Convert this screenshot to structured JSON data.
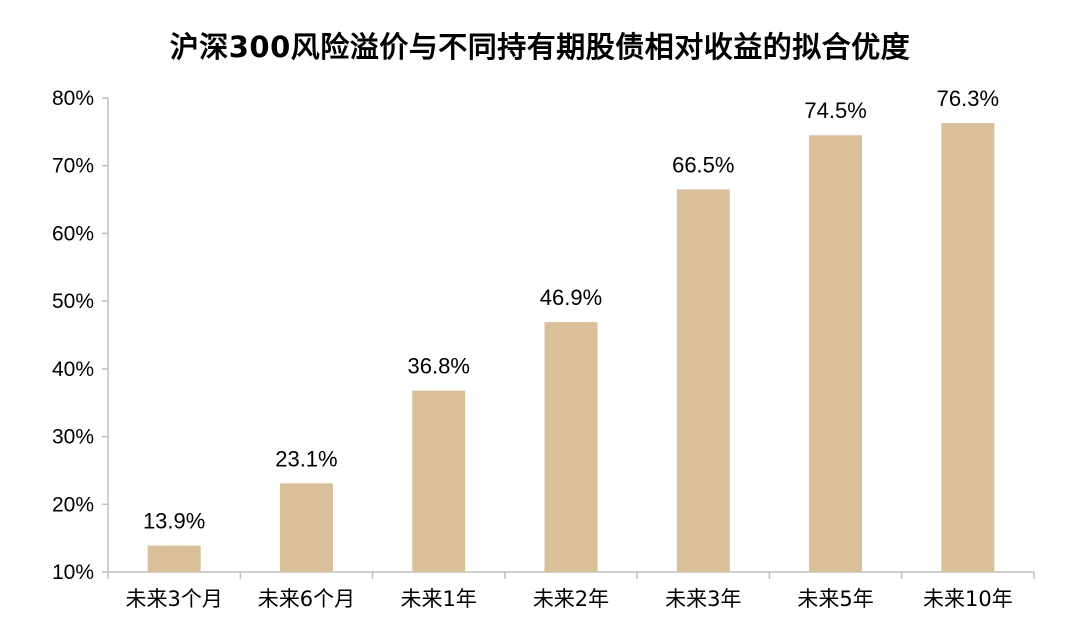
{
  "chart_data": {
    "type": "bar",
    "title": "沪深300风险溢价与不同持有期股债相对收益的拟合优度",
    "xlabel": "",
    "ylabel": "",
    "categories": [
      "未来3个月",
      "未来6个月",
      "未来1年",
      "未来2年",
      "未来3年",
      "未来5年",
      "未来10年"
    ],
    "values": [
      13.9,
      23.1,
      36.8,
      46.9,
      66.5,
      74.5,
      76.3
    ],
    "data_labels": [
      "13.9%",
      "23.1%",
      "36.8%",
      "46.9%",
      "66.5%",
      "74.5%",
      "76.3%"
    ],
    "ylim": [
      10,
      80
    ],
    "yticks": [
      10,
      20,
      30,
      40,
      50,
      60,
      70,
      80
    ],
    "ytick_labels": [
      "10%",
      "20%",
      "30%",
      "40%",
      "50%",
      "60%",
      "70%",
      "80%"
    ],
    "grid": false,
    "legend": "none",
    "colors": {
      "bar": "#D9C09B",
      "axis": "#BFBFBF",
      "text": "#000000"
    }
  }
}
